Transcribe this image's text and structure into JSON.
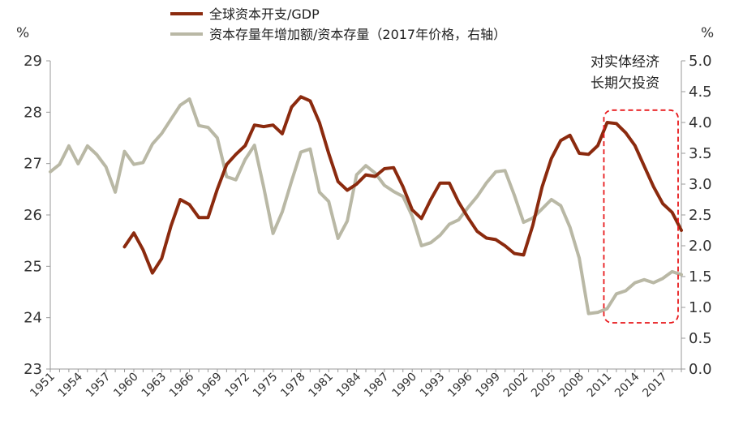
{
  "chart_data": {
    "type": "line",
    "y_left_unit": "%",
    "y_right_unit": "%",
    "ylim_left": [
      23,
      29
    ],
    "ylim_right": [
      0.0,
      5.0
    ],
    "y_left_ticks": [
      "23",
      "24",
      "25",
      "26",
      "27",
      "28",
      "29"
    ],
    "y_right_ticks": [
      "0.0",
      "0.5",
      "1.0",
      "1.5",
      "2.0",
      "2.5",
      "3.0",
      "3.5",
      "4.0",
      "4.5",
      "5.0"
    ],
    "x_tick_labels": [
      "1951",
      "1954",
      "1957",
      "1960",
      "1963",
      "1966",
      "1969",
      "1972",
      "1975",
      "1978",
      "1981",
      "1984",
      "1987",
      "1990",
      "1993",
      "1996",
      "1999",
      "2002",
      "2005",
      "2008",
      "2011",
      "2014",
      "2017"
    ],
    "xlim": [
      1951,
      2019
    ],
    "legend_position": "top-left",
    "annotation": {
      "lines": [
        "对实体经济",
        "长期欠投资"
      ],
      "x_range": [
        2011,
        2019
      ],
      "y_right_range": [
        0.75,
        4.2
      ]
    },
    "series": [
      {
        "name": "全球资本开支/GDP",
        "axis": "left",
        "color": "#8b2a0e",
        "x": [
          1959,
          1960,
          1961,
          1962,
          1963,
          1964,
          1965,
          1966,
          1967,
          1968,
          1969,
          1970,
          1971,
          1972,
          1973,
          1974,
          1975,
          1976,
          1977,
          1978,
          1979,
          1980,
          1981,
          1982,
          1983,
          1984,
          1985,
          1986,
          1987,
          1988,
          1989,
          1990,
          1991,
          1992,
          1993,
          1994,
          1995,
          1996,
          1997,
          1998,
          1999,
          2000,
          2001,
          2002,
          2003,
          2004,
          2005,
          2006,
          2007,
          2008,
          2009,
          2010,
          2011,
          2012,
          2013,
          2014,
          2015,
          2016,
          2017,
          2018,
          2019
        ],
        "values": [
          25.38,
          25.65,
          25.32,
          24.87,
          25.15,
          25.78,
          26.3,
          26.2,
          25.95,
          25.95,
          26.5,
          26.98,
          27.18,
          27.35,
          27.75,
          27.72,
          27.75,
          27.58,
          28.1,
          28.3,
          28.22,
          27.8,
          27.2,
          26.65,
          26.48,
          26.6,
          26.78,
          26.75,
          26.9,
          26.92,
          26.55,
          26.1,
          25.93,
          26.3,
          26.62,
          26.62,
          26.25,
          25.95,
          25.68,
          25.55,
          25.52,
          25.4,
          25.25,
          25.22,
          25.8,
          26.55,
          27.1,
          27.45,
          27.55,
          27.2,
          27.18,
          27.35,
          27.8,
          27.78,
          27.6,
          27.35,
          26.95,
          26.55,
          26.22,
          26.05,
          25.7
        ]
      },
      {
        "name": "资本存量年增加额/资本存量（2017年价格，右轴）",
        "axis": "right",
        "color": "#b9b8a5",
        "x": [
          1951,
          1952,
          1953,
          1954,
          1955,
          1956,
          1957,
          1958,
          1959,
          1960,
          1961,
          1962,
          1963,
          1964,
          1965,
          1966,
          1967,
          1968,
          1969,
          1970,
          1971,
          1972,
          1973,
          1974,
          1975,
          1976,
          1977,
          1978,
          1979,
          1980,
          1981,
          1982,
          1983,
          1984,
          1985,
          1986,
          1987,
          1988,
          1989,
          1990,
          1991,
          1992,
          1993,
          1994,
          1995,
          1996,
          1997,
          1998,
          1999,
          2000,
          2001,
          2002,
          2003,
          2004,
          2005,
          2006,
          2007,
          2008,
          2009,
          2010,
          2011,
          2012,
          2013,
          2014,
          2015,
          2016,
          2017,
          2018,
          2019
        ],
        "values": [
          3.2,
          3.32,
          3.62,
          3.33,
          3.62,
          3.48,
          3.28,
          2.87,
          3.53,
          3.32,
          3.35,
          3.65,
          3.82,
          4.05,
          4.28,
          4.38,
          3.95,
          3.92,
          3.75,
          3.12,
          3.07,
          3.4,
          3.63,
          2.95,
          2.2,
          2.55,
          3.05,
          3.52,
          3.57,
          2.87,
          2.72,
          2.12,
          2.4,
          3.15,
          3.3,
          3.18,
          2.98,
          2.88,
          2.8,
          2.48,
          2.0,
          2.05,
          2.17,
          2.35,
          2.42,
          2.62,
          2.8,
          3.02,
          3.2,
          3.22,
          2.82,
          2.38,
          2.45,
          2.6,
          2.75,
          2.65,
          2.3,
          1.8,
          0.9,
          0.92,
          0.98,
          1.22,
          1.27,
          1.4,
          1.45,
          1.4,
          1.47,
          1.58,
          1.53
        ]
      }
    ]
  }
}
